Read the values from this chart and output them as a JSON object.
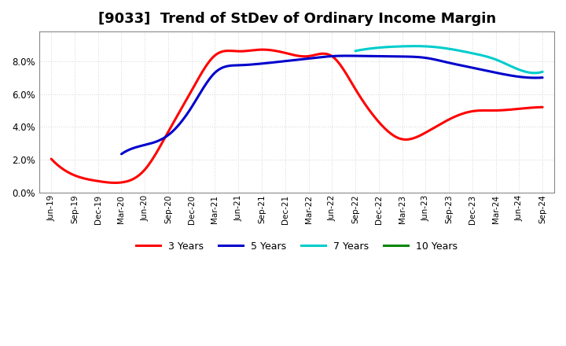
{
  "title": "[9033]  Trend of StDev of Ordinary Income Margin",
  "x_labels": [
    "Jun-19",
    "Sep-19",
    "Dec-19",
    "Mar-20",
    "Jun-20",
    "Sep-20",
    "Dec-20",
    "Mar-21",
    "Jun-21",
    "Sep-21",
    "Dec-21",
    "Mar-22",
    "Jun-22",
    "Sep-22",
    "Dec-22",
    "Mar-23",
    "Jun-23",
    "Sep-23",
    "Dec-23",
    "Mar-24",
    "Jun-24",
    "Sep-24"
  ],
  "series": {
    "3 Years": {
      "color": "#FF0000",
      "values": [
        2.05,
        1.05,
        0.7,
        0.62,
        1.4,
        3.7,
        6.2,
        8.35,
        8.6,
        8.7,
        8.5,
        8.3,
        8.3,
        6.3,
        4.3,
        3.25,
        3.65,
        4.45,
        4.95,
        5.0,
        5.1,
        5.2
      ]
    },
    "5 Years": {
      "color": "#0000CC",
      "values": [
        null,
        null,
        null,
        2.35,
        2.9,
        3.5,
        5.2,
        7.3,
        7.75,
        7.85,
        8.0,
        8.15,
        8.3,
        8.32,
        8.3,
        8.28,
        8.2,
        7.9,
        7.6,
        7.3,
        7.05,
        7.0
      ]
    },
    "7 Years": {
      "color": "#00CCCC",
      "values": [
        null,
        null,
        null,
        null,
        null,
        null,
        null,
        null,
        null,
        null,
        null,
        null,
        null,
        8.62,
        8.82,
        8.9,
        8.9,
        8.75,
        8.48,
        8.1,
        7.48,
        7.35
      ]
    },
    "10 Years": {
      "color": "#008800",
      "values": [
        null,
        null,
        null,
        null,
        null,
        null,
        null,
        null,
        null,
        null,
        null,
        null,
        null,
        null,
        null,
        null,
        null,
        null,
        null,
        null,
        null,
        null
      ]
    }
  },
  "ylim": [
    0.0,
    9.8
  ],
  "yticks": [
    0.0,
    2.0,
    4.0,
    6.0,
    8.0
  ],
  "background_color": "#FFFFFF",
  "grid_color": "#AAAAAA",
  "title_fontsize": 13,
  "title_fontweight": "bold"
}
